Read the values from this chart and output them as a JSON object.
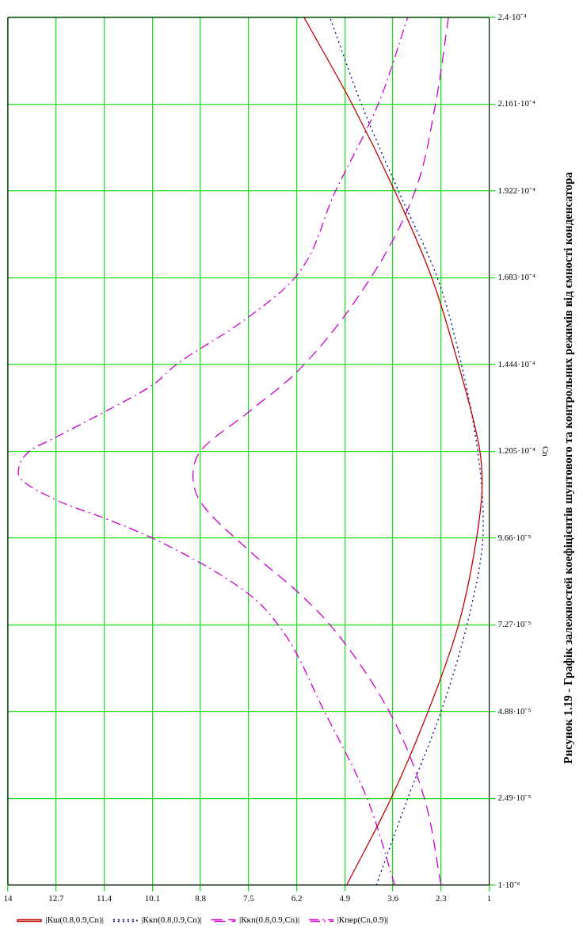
{
  "chart_data": {
    "type": "line",
    "ylabel": "Cn",
    "annotations": [
      "Рисунок 1.19 - Графік залежностей коефіцієнтів шунтового та контрольних режимів від ємності конденсатора"
    ],
    "ylim": [
      1e-06,
      0.00024
    ],
    "yticks": [
      {
        "value": 1e-06,
        "label": "1·10⁻⁶"
      },
      {
        "value": 2.49e-05,
        "label": "2.49·10⁻⁵"
      },
      {
        "value": 4.88e-05,
        "label": "4.88·10⁻⁵"
      },
      {
        "value": 7.27e-05,
        "label": "7.27·10⁻⁵"
      },
      {
        "value": 9.66e-05,
        "label": "9.66·10⁻⁵"
      },
      {
        "value": 0.0001205,
        "label": "1.205·10⁻⁴"
      },
      {
        "value": 0.0001444,
        "label": "1.444·10⁻⁴"
      },
      {
        "value": 0.0001683,
        "label": "1.683·10⁻⁴"
      },
      {
        "value": 0.0001922,
        "label": "1.922·10⁻⁴"
      },
      {
        "value": 0.0002161,
        "label": "2.161·10⁻⁴"
      },
      {
        "value": 0.00024,
        "label": "2.4·10⁻⁴"
      }
    ],
    "xlim": [
      14,
      1
    ],
    "xticks": [
      14,
      12.7,
      11.4,
      10.1,
      8.8,
      7.5,
      6.2,
      4.9,
      3.6,
      2.3,
      1
    ],
    "grid": true,
    "legend": "bottom left",
    "marker": "none",
    "series": [
      {
        "name": "|Кш(0.8,0.9,Cn)|",
        "color": "#c00000",
        "line_style": "solid",
        "values": [
          1e-06,
          2.49e-05,
          4.88e-05,
          7.27e-05,
          9.66e-05,
          0.0001115,
          0.0001205,
          0.0001444,
          0.0001683,
          0.0001922,
          0.0002161,
          0.00024
        ],
        "x": [
          4.85,
          3.65,
          2.65,
          1.83,
          1.34,
          1.19,
          1.25,
          1.83,
          2.55,
          3.55,
          4.7,
          6.0
        ]
      },
      {
        "name": "|Ккп(0.8,0.9,Cn)|",
        "color": "#000080",
        "line_style": "dotted",
        "values": [
          1e-06,
          2.49e-05,
          4.88e-05,
          7.27e-05,
          9.66e-05,
          0.0001016,
          0.0001205,
          0.0001444,
          0.0001683,
          0.0001922,
          0.0002161,
          0.00024
        ],
        "x": [
          4.05,
          3.2,
          2.3,
          1.6,
          1.17,
          1.16,
          1.31,
          1.75,
          2.4,
          3.45,
          4.45,
          5.3
        ]
      },
      {
        "name": "|Ккп(0.8,0.9,Cn)|",
        "color": "#cc00cc",
        "line_style": "dashed",
        "values": [
          1e-06,
          2.49e-05,
          4.88e-05,
          7.27e-05,
          8.2e-05,
          9.33e-05,
          0.0001066,
          0.0001136,
          0.0001205,
          0.0001313,
          0.0001423,
          0.0001683,
          0.0001922,
          0.0002161,
          0.00024
        ],
        "x": [
          2.3,
          2.75,
          3.7,
          5.3,
          6.2,
          7.5,
          8.8,
          9.0,
          8.8,
          7.5,
          6.2,
          4.2,
          3.0,
          2.45,
          2.1
        ]
      },
      {
        "name": "|Кпер(Cn,0.9)|",
        "color": "#cc00cc",
        "line_style": "dashdot",
        "values": [
          1e-06,
          2.49e-05,
          4.88e-05,
          7.27e-05,
          8.2e-05,
          9.66e-05,
          0.0001021,
          0.0001071,
          0.0001145,
          0.0001205,
          0.0001244,
          0.0001313,
          0.0001387,
          0.0001444,
          0.000156,
          0.0001683,
          0.0001922,
          0.0002161,
          0.00024
        ],
        "x": [
          3.55,
          4.3,
          5.45,
          6.7,
          7.6,
          10.1,
          11.4,
          12.7,
          13.72,
          13.42,
          12.7,
          11.4,
          10.1,
          9.45,
          7.7,
          6.25,
          5.15,
          4.0,
          3.2
        ]
      }
    ]
  }
}
